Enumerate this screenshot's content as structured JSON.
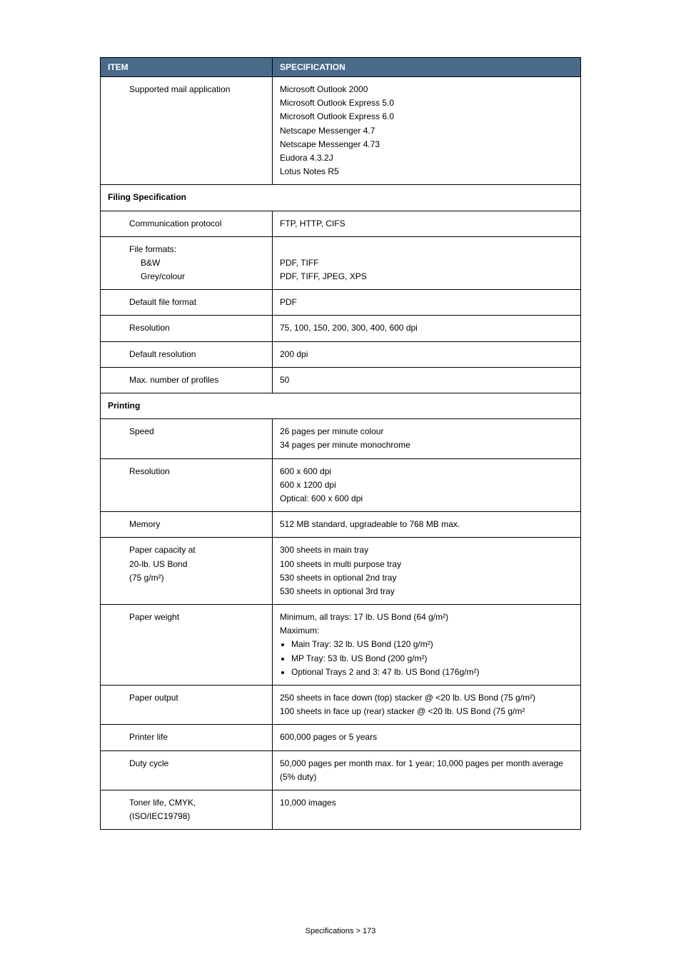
{
  "header": {
    "item": "ITEM",
    "spec": "SPECIFICATION"
  },
  "rows": [
    {
      "item": "Supported mail application",
      "spec_lines": [
        "Microsoft Outlook 2000",
        "Microsoft Outlook Express 5.0",
        "Microsoft Outlook Express 6.0",
        "Netscape Messenger 4.7",
        "Netscape Messenger 4.73",
        "Eudora 4.3.2J",
        "Lotus Notes R5"
      ]
    }
  ],
  "section_filing": "Filing Specification",
  "filing_rows": {
    "comm_proto": {
      "item": "Communication protocol",
      "spec": "FTP, HTTP, CIFS"
    },
    "file_formats": {
      "item": "File formats:",
      "bw_label": "B&W",
      "grey_label": "Grey/colour",
      "bw_spec": "PDF, TIFF",
      "grey_spec": "PDF, TIFF, JPEG, XPS"
    },
    "default_format": {
      "item": "Default file format",
      "spec": "PDF"
    },
    "resolution": {
      "item": "Resolution",
      "spec": "75, 100, 150, 200, 300, 400, 600 dpi"
    },
    "default_res": {
      "item": "Default resolution",
      "spec": "200 dpi"
    },
    "max_profiles": {
      "item": "Max. number of profiles",
      "spec": "50"
    }
  },
  "section_printing": "Printing",
  "printing_rows": {
    "speed": {
      "item": "Speed",
      "spec_lines": [
        "26 pages per minute colour",
        "34 pages per minute monochrome"
      ]
    },
    "resolution": {
      "item": "Resolution",
      "spec_lines": [
        "600 x 600 dpi",
        "600 x 1200 dpi",
        "Optical: 600 x 600 dpi"
      ]
    },
    "memory": {
      "item": "Memory",
      "spec": "512 MB standard, upgradeable to 768 MB max."
    },
    "paper_cap": {
      "item_lines": [
        "Paper capacity at",
        "20-lb. US Bond",
        "(75 g/m²)"
      ],
      "spec_lines": [
        "300 sheets in main tray",
        "100 sheets in multi purpose tray",
        "530 sheets in optional 2nd tray",
        "530 sheets in optional 3rd tray"
      ]
    },
    "paper_weight": {
      "item": "Paper weight",
      "intro1": "Minimum, all trays: 17 lb. US Bond (64 g/m²)",
      "intro2": "Maximum:",
      "bullets": [
        "Main Tray: 32 lb. US Bond (120 g/m²)",
        "MP Tray: 53 lb. US Bond (200 g/m²)",
        "Optional Trays 2 and 3: 47 lb. US Bond (176g/m²)"
      ]
    },
    "paper_output": {
      "item": "Paper output",
      "spec_lines": [
        "250 sheets in face down (top) stacker @ <20 lb. US Bond (75 g/m²)",
        "100 sheets in face up (rear) stacker @ <20 lb. US Bond (75 g/m²"
      ]
    },
    "printer_life": {
      "item": "Printer life",
      "spec": "600,000 pages or 5 years"
    },
    "duty_cycle": {
      "item": "Duty cycle",
      "spec": "50,000 pages per month max. for 1 year; 10,000 pages per month average (5% duty)"
    },
    "toner_life": {
      "item_lines": [
        "Toner life, CMYK,",
        "(ISO/IEC19798)"
      ],
      "spec": "10,000 images"
    }
  },
  "footer": "Specifications > 173"
}
